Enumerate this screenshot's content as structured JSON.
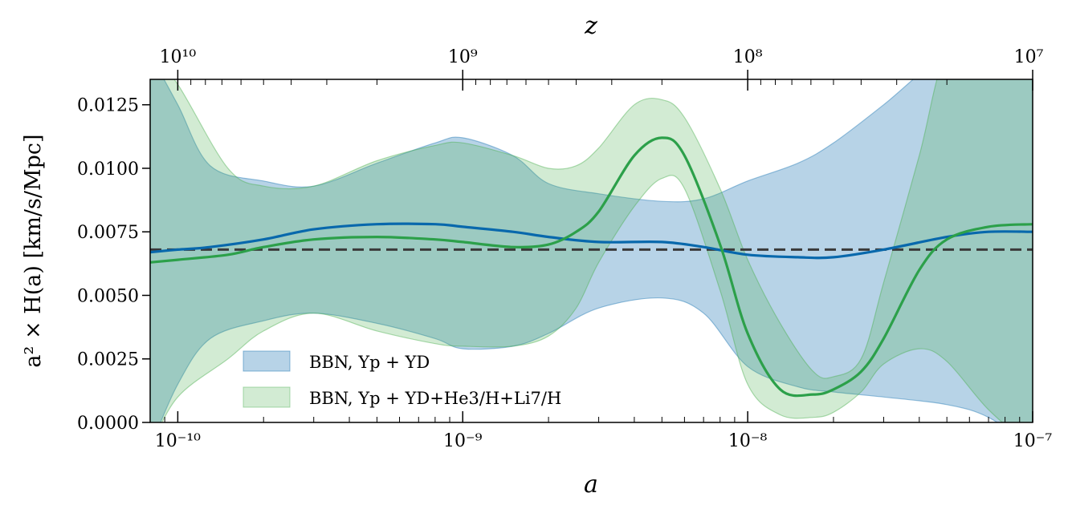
{
  "chart_data": {
    "type": "area",
    "xlabel": "a",
    "x2label": "z",
    "ylabel": "a² × H(a) [km/s/Mpc]",
    "xscale": "log",
    "x2scale": "log",
    "xlim": [
      8e-11,
      1e-07
    ],
    "ylim": [
      0,
      0.0135
    ],
    "x_ticks": [
      {
        "value": 1e-10,
        "label": "10⁻¹⁰"
      },
      {
        "value": 1e-09,
        "label": "10⁻⁹"
      },
      {
        "value": 1e-08,
        "label": "10⁻⁸"
      },
      {
        "value": 1e-07,
        "label": "10⁻⁷"
      }
    ],
    "x2_ticks": [
      {
        "value": 10000000000.0,
        "label": "10¹⁰"
      },
      {
        "value": 1000000000.0,
        "label": "10⁹"
      },
      {
        "value": 100000000.0,
        "label": "10⁸"
      },
      {
        "value": 10000000.0,
        "label": "10⁷"
      }
    ],
    "y_ticks": [
      "0.0000",
      "0.0025",
      "0.0050",
      "0.0075",
      "0.0100",
      "0.0125"
    ],
    "y_tick_values": [
      0,
      0.0025,
      0.005,
      0.0075,
      0.01,
      0.0125
    ],
    "reference_line": {
      "y": 0.0068,
      "style": "dashed",
      "color": "#3a3a3a"
    },
    "legend": {
      "placement": "lower-left",
      "entries": [
        {
          "label": "BBN, Yp + YD",
          "color": "#7fb3d5"
        },
        {
          "label": "BBN, Yp + YD+He3/H+Li7/H",
          "color": "#a8d8a8"
        }
      ]
    },
    "series": [
      {
        "legend_index": 0,
        "line_color": "#0868ac",
        "band_color": "#1f77b4",
        "x": [
          8e-11,
          1e-10,
          1.3e-10,
          2e-10,
          3e-10,
          5e-10,
          8e-10,
          1e-09,
          1.5e-09,
          2e-09,
          3e-09,
          5e-09,
          7e-09,
          1e-08,
          1.5e-08,
          2e-08,
          3e-08,
          5e-08,
          7e-08,
          1e-07
        ],
        "y": [
          0.0067,
          0.0068,
          0.0069,
          0.0072,
          0.0076,
          0.0078,
          0.0078,
          0.0077,
          0.0075,
          0.0073,
          0.0071,
          0.0071,
          0.0069,
          0.0066,
          0.0065,
          0.0065,
          0.0068,
          0.0073,
          0.0075,
          0.0075
        ],
        "upper": [
          0.0145,
          0.0125,
          0.0101,
          0.0095,
          0.0093,
          0.0102,
          0.011,
          0.0112,
          0.0105,
          0.0094,
          0.009,
          0.0087,
          0.0088,
          0.0095,
          0.0102,
          0.011,
          0.0125,
          0.0145,
          0.0145,
          0.0145
        ],
        "lower": [
          -0.001,
          0.0015,
          0.0033,
          0.004,
          0.0043,
          0.0039,
          0.0033,
          0.0029,
          0.003,
          0.0035,
          0.0045,
          0.0049,
          0.0043,
          0.0022,
          0.0014,
          0.0012,
          0.001,
          0.0007,
          0.0002,
          -0.001
        ]
      },
      {
        "legend_index": 1,
        "line_color": "#2ca04a",
        "band_color": "#4caf50",
        "x": [
          8e-11,
          1e-10,
          1.5e-10,
          2e-10,
          3e-10,
          5e-10,
          8e-10,
          1e-09,
          1.5e-09,
          2e-09,
          2.5e-09,
          3e-09,
          4e-09,
          5e-09,
          6e-09,
          8e-09,
          1e-08,
          1.3e-08,
          1.7e-08,
          2e-08,
          2.5e-08,
          3e-08,
          4e-08,
          5e-08,
          7e-08,
          1e-07
        ],
        "y": [
          0.0063,
          0.0064,
          0.0066,
          0.0069,
          0.0072,
          0.0073,
          0.0072,
          0.0071,
          0.0069,
          0.007,
          0.0075,
          0.0083,
          0.0105,
          0.0112,
          0.0105,
          0.007,
          0.0035,
          0.0013,
          0.0011,
          0.0013,
          0.002,
          0.0033,
          0.006,
          0.0072,
          0.0077,
          0.0078
        ],
        "upper": [
          0.0145,
          0.0133,
          0.01,
          0.0093,
          0.0093,
          0.0103,
          0.0109,
          0.011,
          0.0105,
          0.01,
          0.0101,
          0.0108,
          0.0125,
          0.0127,
          0.012,
          0.0092,
          0.0064,
          0.0039,
          0.002,
          0.0018,
          0.0025,
          0.0055,
          0.0105,
          0.0145,
          0.0145,
          0.0145
        ],
        "lower": [
          -0.001,
          0.001,
          0.0025,
          0.0036,
          0.0043,
          0.0036,
          0.0031,
          0.003,
          0.003,
          0.0034,
          0.0045,
          0.0063,
          0.0085,
          0.0096,
          0.0092,
          0.0052,
          0.0015,
          0.0003,
          0.0002,
          0.0004,
          0.0012,
          0.0023,
          0.0029,
          0.0024,
          0.0005,
          -0.001
        ]
      }
    ]
  }
}
